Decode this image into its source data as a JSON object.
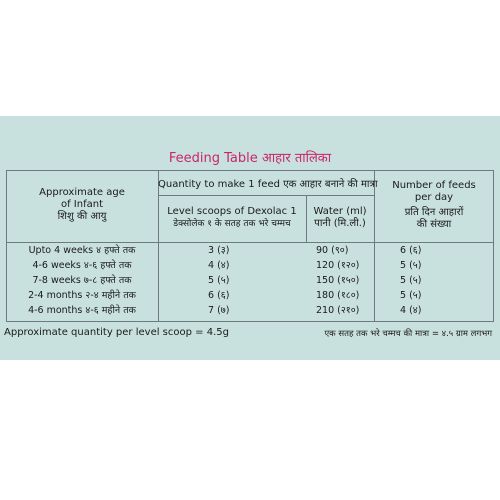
{
  "title": "Feeding Table आहार तालिका",
  "headers": {
    "age_en": "Approximate age",
    "age_en2": "of Infant",
    "age_hi": "शिशु की आयु",
    "quantity": "Quantity to make 1 feed एक आहार बनाने की मात्रा",
    "scoops_en": "Level scoops of Dexolac 1",
    "scoops_hi": "डेक्सोलेक १ के सतह तक भरे चम्मच",
    "water_en": "Water (ml)",
    "water_hi": "पानी (मि.ली.)",
    "feeds_en": "Number of feeds",
    "feeds_en2": "per day",
    "feeds_hi": "प्रति दिन आहारों",
    "feeds_hi2": "की संख्या"
  },
  "rows": [
    {
      "age": "Upto 4 weeks ४ हफ्ते तक",
      "scoops": "3 (३)",
      "water": "90 (९०)",
      "feeds": "6 (६)"
    },
    {
      "age": "4-6 weeks ४-६ हफ्ते तक",
      "scoops": "4 (४)",
      "water": "120 (१२०)",
      "feeds": "5 (५)"
    },
    {
      "age": "7-8 weeks ७-८ हफ्ते तक",
      "scoops": "5 (५)",
      "water": "150 (१५०)",
      "feeds": "5 (५)"
    },
    {
      "age": "2-4 months २-४ महीने तक",
      "scoops": "6 (६)",
      "water": "180 (१८०)",
      "feeds": "5 (५)"
    },
    {
      "age": "4-6 months ४-६ महीने तक",
      "scoops": "7 (७)",
      "water": "210 (२१०)",
      "feeds": "4 (४)"
    }
  ],
  "footer": {
    "left": "Approximate quantity per level scoop = 4.5g",
    "right": "एक सतह तक भरे चम्मच की मात्रा = ४.५ ग्राम लगभग"
  }
}
